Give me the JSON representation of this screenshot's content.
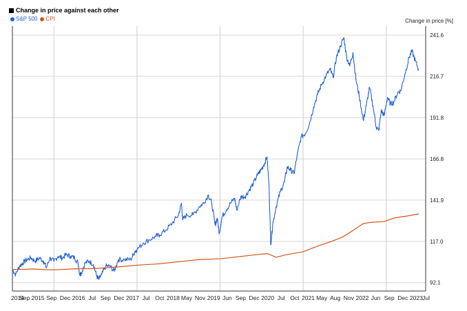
{
  "chart_data": {
    "type": "line",
    "title": "Change in price against each other",
    "ylabel": "Change in price [%]",
    "ylim": [
      87,
      247
    ],
    "y_ticks": [
      92.1,
      117.0,
      141.9,
      166.8,
      191.8,
      216.7,
      241.6
    ],
    "y_tick_labels": [
      "92.1",
      "117.0",
      "141.9",
      "166.8",
      "191.8",
      "216.7",
      "241.6"
    ],
    "x_tick_labels": [
      "2014",
      "Sep",
      "2015",
      "Sep",
      "Dec",
      "2016",
      "Jul",
      "Sep",
      "Dec",
      "2017",
      "Jul",
      "Oct",
      "2018",
      "May",
      "Nov",
      "2019",
      "Jun",
      "Sep",
      "Dec",
      "2020",
      "Jul",
      "Oct",
      "2021",
      "May",
      "Aug",
      "Nov",
      "2022",
      "Jun",
      "Sep",
      "Dec",
      "2023",
      "Jul"
    ],
    "x_vgrid_labels": [
      "2015",
      "2017",
      "2019",
      "2021",
      "2023"
    ],
    "legend_position": "top-left",
    "grid": true,
    "series": [
      {
        "name": "S&P 500",
        "color": "#1f5fd6",
        "points": [
          [
            2014.0,
            100
          ],
          [
            2014.08,
            97
          ],
          [
            2014.17,
            102
          ],
          [
            2014.25,
            104
          ],
          [
            2014.35,
            106
          ],
          [
            2014.45,
            107
          ],
          [
            2014.55,
            105
          ],
          [
            2014.65,
            107
          ],
          [
            2014.75,
            105
          ],
          [
            2014.82,
            101
          ],
          [
            2014.9,
            107
          ],
          [
            2015.0,
            105
          ],
          [
            2015.1,
            108
          ],
          [
            2015.2,
            107
          ],
          [
            2015.3,
            109
          ],
          [
            2015.4,
            108
          ],
          [
            2015.5,
            107
          ],
          [
            2015.58,
            104
          ],
          [
            2015.62,
            97
          ],
          [
            2015.66,
            98
          ],
          [
            2015.75,
            104
          ],
          [
            2015.85,
            105
          ],
          [
            2015.95,
            103
          ],
          [
            2016.03,
            96
          ],
          [
            2016.08,
            94
          ],
          [
            2016.15,
            97
          ],
          [
            2016.25,
            102
          ],
          [
            2016.35,
            102
          ],
          [
            2016.45,
            99
          ],
          [
            2016.55,
            106
          ],
          [
            2016.7,
            106
          ],
          [
            2016.85,
            106
          ],
          [
            2016.95,
            111
          ],
          [
            2017.0,
            112
          ],
          [
            2017.15,
            116
          ],
          [
            2017.3,
            118
          ],
          [
            2017.45,
            120
          ],
          [
            2017.55,
            121
          ],
          [
            2017.7,
            124
          ],
          [
            2017.85,
            128
          ],
          [
            2018.0,
            133
          ],
          [
            2018.07,
            140
          ],
          [
            2018.1,
            130
          ],
          [
            2018.2,
            133
          ],
          [
            2018.35,
            133
          ],
          [
            2018.5,
            138
          ],
          [
            2018.6,
            140
          ],
          [
            2018.72,
            145
          ],
          [
            2018.8,
            140
          ],
          [
            2018.88,
            127
          ],
          [
            2018.93,
            131
          ],
          [
            2018.98,
            122
          ],
          [
            2019.05,
            132
          ],
          [
            2019.15,
            136
          ],
          [
            2019.25,
            140
          ],
          [
            2019.35,
            143
          ],
          [
            2019.4,
            136
          ],
          [
            2019.5,
            144
          ],
          [
            2019.6,
            144
          ],
          [
            2019.7,
            148
          ],
          [
            2019.8,
            152
          ],
          [
            2019.9,
            157
          ],
          [
            2019.98,
            160
          ],
          [
            2020.05,
            163
          ],
          [
            2020.13,
            168
          ],
          [
            2020.18,
            150
          ],
          [
            2020.22,
            115
          ],
          [
            2020.27,
            128
          ],
          [
            2020.35,
            138
          ],
          [
            2020.45,
            147
          ],
          [
            2020.55,
            153
          ],
          [
            2020.62,
            162
          ],
          [
            2020.7,
            160
          ],
          [
            2020.78,
            158
          ],
          [
            2020.85,
            168
          ],
          [
            2020.95,
            180
          ],
          [
            2021.05,
            182
          ],
          [
            2021.15,
            188
          ],
          [
            2021.25,
            198
          ],
          [
            2021.35,
            206
          ],
          [
            2021.45,
            212
          ],
          [
            2021.55,
            217
          ],
          [
            2021.65,
            221
          ],
          [
            2021.72,
            216
          ],
          [
            2021.8,
            228
          ],
          [
            2021.9,
            235
          ],
          [
            2021.98,
            240
          ],
          [
            2022.05,
            228
          ],
          [
            2022.12,
            223
          ],
          [
            2022.2,
            231
          ],
          [
            2022.27,
            215
          ],
          [
            2022.35,
            205
          ],
          [
            2022.45,
            190
          ],
          [
            2022.52,
            199
          ],
          [
            2022.6,
            210
          ],
          [
            2022.68,
            199
          ],
          [
            2022.76,
            186
          ],
          [
            2022.82,
            184
          ],
          [
            2022.88,
            196
          ],
          [
            2022.95,
            193
          ],
          [
            2023.03,
            204
          ],
          [
            2023.1,
            200
          ],
          [
            2023.18,
            201
          ],
          [
            2023.28,
            207
          ],
          [
            2023.35,
            208
          ],
          [
            2023.45,
            218
          ],
          [
            2023.55,
            228
          ],
          [
            2023.62,
            232
          ],
          [
            2023.7,
            226
          ],
          [
            2023.78,
            221
          ]
        ]
      },
      {
        "name": "CPI",
        "color": "#d4541a",
        "points": [
          [
            2014.0,
            100
          ],
          [
            2014.25,
            100.1
          ],
          [
            2014.5,
            100.3
          ],
          [
            2014.75,
            100.0
          ],
          [
            2015.0,
            99.8
          ],
          [
            2015.5,
            100.4
          ],
          [
            2016.0,
            100.6
          ],
          [
            2016.5,
            101.5
          ],
          [
            2017.0,
            102.6
          ],
          [
            2017.5,
            103.4
          ],
          [
            2018.0,
            104.7
          ],
          [
            2018.5,
            106.0
          ],
          [
            2019.0,
            106.5
          ],
          [
            2019.5,
            107.9
          ],
          [
            2020.0,
            109.3
          ],
          [
            2020.15,
            109.6
          ],
          [
            2020.35,
            107.4
          ],
          [
            2020.6,
            109.0
          ],
          [
            2021.0,
            110.7
          ],
          [
            2021.35,
            114.2
          ],
          [
            2021.65,
            116.7
          ],
          [
            2021.95,
            119.6
          ],
          [
            2022.2,
            123.6
          ],
          [
            2022.45,
            127.8
          ],
          [
            2022.65,
            128.5
          ],
          [
            2022.95,
            129.0
          ],
          [
            2023.2,
            131.2
          ],
          [
            2023.5,
            132.3
          ],
          [
            2023.78,
            133.6
          ]
        ]
      }
    ]
  }
}
